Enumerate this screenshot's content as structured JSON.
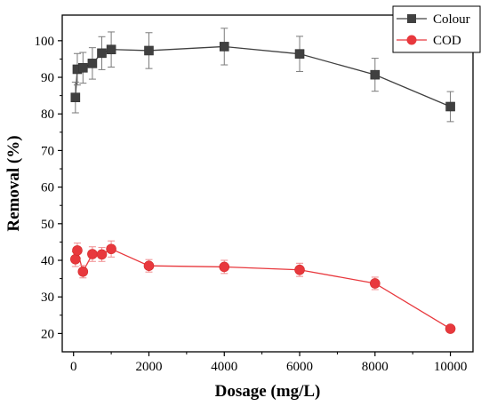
{
  "chart_data": {
    "type": "line",
    "xlabel": "Dosage (mg/L)",
    "ylabel": "Removal (%)",
    "xlim": [
      -300,
      10600
    ],
    "ylim": [
      15,
      107
    ],
    "xticks": [
      0,
      2000,
      4000,
      6000,
      8000,
      10000
    ],
    "yticks": [
      20,
      30,
      40,
      50,
      60,
      70,
      80,
      90,
      100
    ],
    "legend_position": "top-right",
    "series": [
      {
        "name": "Colour",
        "color": "#404040",
        "marker": "square",
        "x": [
          50,
          100,
          250,
          500,
          750,
          1000,
          2000,
          4000,
          6000,
          8000,
          10000
        ],
        "y": [
          84.5,
          92.2,
          92.6,
          93.8,
          96.6,
          97.6,
          97.3,
          98.4,
          96.4,
          90.7,
          82.0
        ],
        "error": [
          4.2,
          4.3,
          4.2,
          4.3,
          4.5,
          4.8,
          4.9,
          5.0,
          4.8,
          4.5,
          4.1
        ]
      },
      {
        "name": "COD",
        "color": "#e8383d",
        "marker": "circle",
        "x": [
          50,
          100,
          250,
          500,
          750,
          1000,
          2000,
          4000,
          6000,
          8000,
          10000
        ],
        "y": [
          40.3,
          42.7,
          36.9,
          41.7,
          41.6,
          43.1,
          38.5,
          38.2,
          37.4,
          33.7,
          21.3
        ],
        "error": [
          2.0,
          2.0,
          1.7,
          2.0,
          1.9,
          2.2,
          1.7,
          1.8,
          1.8,
          1.7,
          0.7
        ]
      }
    ]
  }
}
